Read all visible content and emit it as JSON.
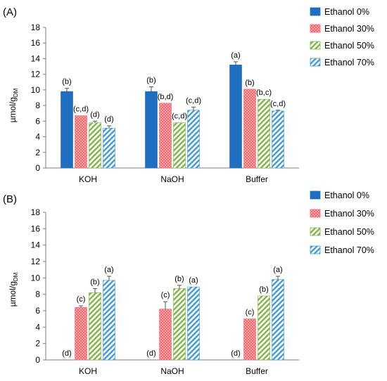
{
  "chart_data": [
    {
      "type": "bar",
      "panel_label": "(A)",
      "title": "",
      "xlabel": "",
      "ylabel": "µmol/g",
      "ylabel_sub": "DM",
      "ylim": [
        0,
        18
      ],
      "yticks": [
        0,
        2,
        4,
        6,
        8,
        10,
        12,
        14,
        16,
        18
      ],
      "grid": false,
      "legend": "top-right",
      "categories": [
        "KOH",
        "NaOH",
        "Buffer"
      ],
      "series": [
        {
          "name": "Ethanol 0%",
          "values": [
            9.8,
            9.8,
            13.2
          ],
          "errors": [
            0.4,
            0.6,
            0.4
          ],
          "labels": [
            "(b)",
            "(b)",
            "(a)"
          ],
          "color": "#1f6ebf"
        },
        {
          "name": "Ethanol 30%",
          "values": [
            6.7,
            8.3,
            10.1
          ],
          "errors": [
            0.0,
            0.0,
            0.0
          ],
          "labels": [
            "(c,d)",
            "(b,d)",
            "(b)"
          ],
          "color": "#f06a70"
        },
        {
          "name": "Ethanol 50%",
          "values": [
            5.8,
            5.8,
            8.8
          ],
          "errors": [
            0.2,
            0.0,
            0.0
          ],
          "labels": [
            "(d)",
            "(c,d)",
            "(b,c)"
          ],
          "color": "#8cc34a"
        },
        {
          "name": "Ethanol 70%",
          "values": [
            5.1,
            7.4,
            7.3
          ],
          "errors": [
            0.3,
            0.4,
            0.1
          ],
          "labels": [
            "(d)",
            "(c,d)",
            "(c,d)"
          ],
          "color": "#5ab1e6"
        }
      ]
    },
    {
      "type": "bar",
      "panel_label": "(B)",
      "title": "",
      "xlabel": "",
      "ylabel": "µmol/g",
      "ylabel_sub": "DM",
      "ylim": [
        0,
        18
      ],
      "yticks": [
        0,
        2,
        4,
        6,
        8,
        10,
        12,
        14,
        16,
        18
      ],
      "grid": false,
      "legend": "top-right",
      "categories": [
        "KOH",
        "NaOH",
        "Buffer"
      ],
      "series": [
        {
          "name": "Ethanol 0%",
          "values": [
            0,
            0,
            0
          ],
          "errors": [
            0,
            0,
            0
          ],
          "labels": [
            "(d)",
            "(d)",
            "(d)"
          ],
          "color": "#1f6ebf"
        },
        {
          "name": "Ethanol 30%",
          "values": [
            6.4,
            6.2,
            5.0
          ],
          "errors": [
            0.2,
            0.9,
            0.0
          ],
          "labels": [
            "(c)",
            "(c)",
            "(c)"
          ],
          "color": "#f06a70"
        },
        {
          "name": "Ethanol 50%",
          "values": [
            8.2,
            8.7,
            7.8
          ],
          "errors": [
            0.5,
            0.4,
            0.0
          ],
          "labels": [
            "(b)",
            "(b)",
            "(b)"
          ],
          "color": "#8cc34a"
        },
        {
          "name": "Ethanol 70%",
          "values": [
            9.7,
            8.9,
            9.8
          ],
          "errors": [
            0.5,
            0.0,
            0.4
          ],
          "labels": [
            "(a)",
            "(a)",
            "(a)"
          ],
          "color": "#5ab1e6"
        }
      ]
    }
  ]
}
